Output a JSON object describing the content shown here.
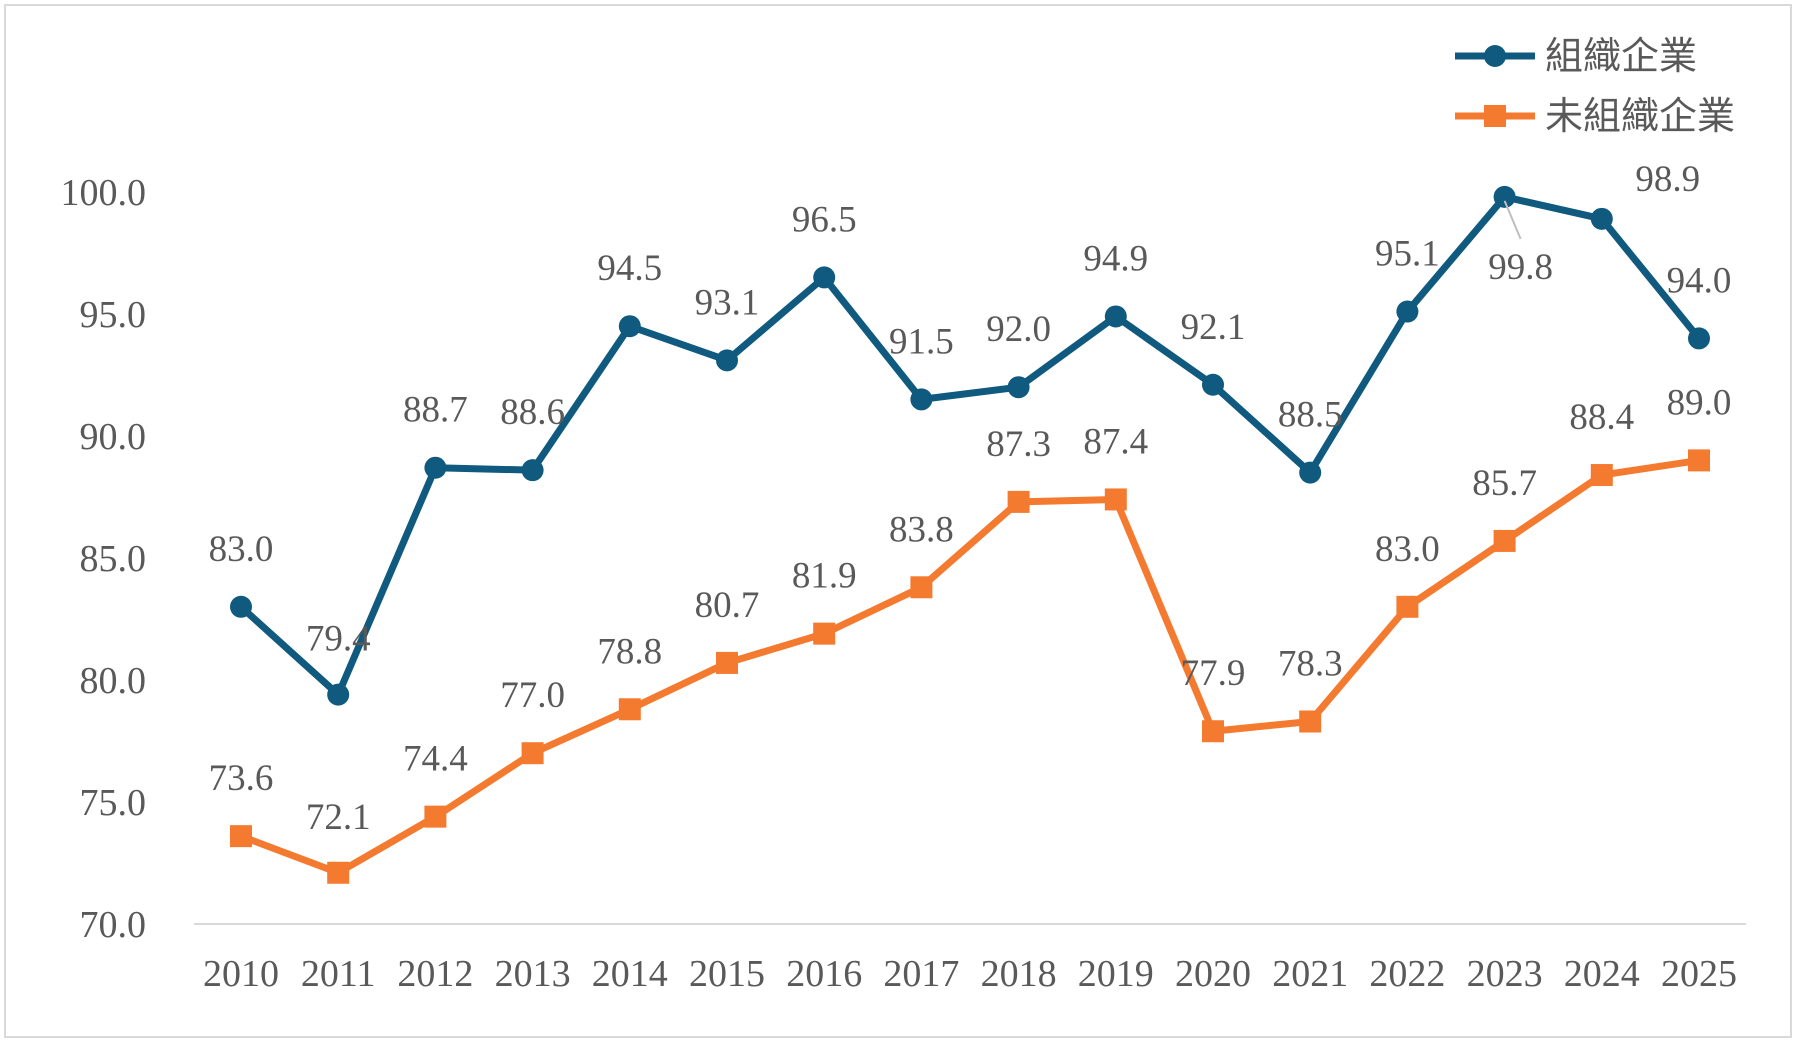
{
  "chart_data": {
    "type": "line",
    "title": "",
    "xlabel": "",
    "ylabel": "",
    "ylim": [
      70,
      100
    ],
    "yticks": [
      "70.0",
      "75.0",
      "80.0",
      "85.0",
      "90.0",
      "95.0",
      "100.0"
    ],
    "yticks_values": [
      70,
      75,
      80,
      85,
      90,
      95,
      100
    ],
    "categories": [
      "2010",
      "2011",
      "2012",
      "2013",
      "2014",
      "2015",
      "2016",
      "2017",
      "2018",
      "2019",
      "2020",
      "2021",
      "2022",
      "2023",
      "2024",
      "2025"
    ],
    "legend_position": "top-right",
    "series": [
      {
        "name": "組織企業",
        "color": "#0f5a7e",
        "marker": "circle",
        "values": [
          83.0,
          79.4,
          88.7,
          88.6,
          94.5,
          93.1,
          96.5,
          91.5,
          92.0,
          94.9,
          92.1,
          88.5,
          95.1,
          99.8,
          98.9,
          94.0
        ],
        "labels": [
          "83.0",
          "79.4",
          "88.7",
          "88.6",
          "94.5",
          "93.1",
          "96.5",
          "91.5",
          "92.0",
          "94.9",
          "92.1",
          "88.5",
          "95.1",
          "99.8",
          "98.9",
          "94.0"
        ]
      },
      {
        "name": "未組織企業",
        "color": "#f47a30",
        "marker": "square",
        "values": [
          73.6,
          72.1,
          74.4,
          77.0,
          78.8,
          80.7,
          81.9,
          83.8,
          87.3,
          87.4,
          77.9,
          78.3,
          83.0,
          85.7,
          88.4,
          89.0
        ],
        "labels": [
          "73.6",
          "72.1",
          "74.4",
          "77.0",
          "78.8",
          "80.7",
          "81.9",
          "83.8",
          "87.3",
          "87.4",
          "77.9",
          "78.3",
          "83.0",
          "85.7",
          "88.4",
          "89.0"
        ]
      }
    ]
  }
}
